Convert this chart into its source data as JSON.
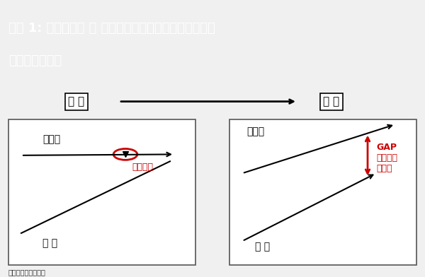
{
  "title_line1": "図表 1: 新産業革命 ＝ 生産性･供給力上昇がデフレと低",
  "title_line2": "金利の根本原因",
  "title_bg_color": "#3a7a5a",
  "title_text_color": "#ffffff",
  "bg_color": "#f0f0f0",
  "panel_bg_color": "#ffffff",
  "source_text": "出所：武者リサーチ",
  "past_label": "過 去",
  "present_label": "現 在",
  "arrow_label_color": "#000000",
  "supply_label": "供給力",
  "demand_label": "需 要",
  "inflation_label": "インフレ",
  "inflation_color": "#cc0000",
  "gap_label": "GAP",
  "deflation_label": "デフレの\nリスク",
  "gap_color": "#cc0000",
  "circle_color": "#cc0000"
}
